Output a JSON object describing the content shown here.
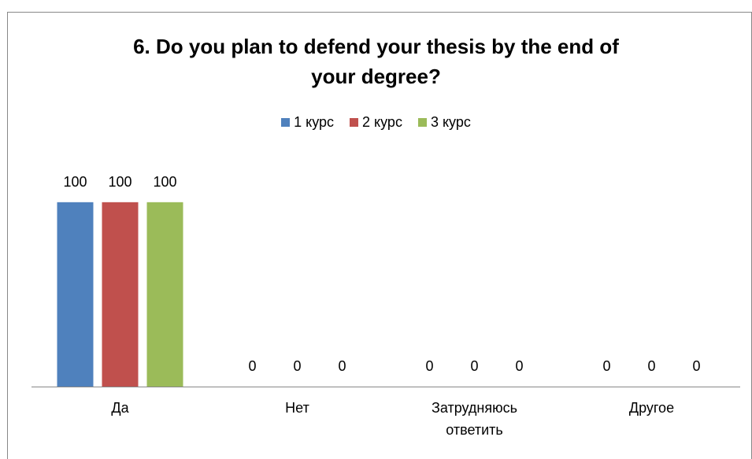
{
  "chart_data": {
    "type": "bar",
    "title": "6. Do you plan to defend your thesis by the end of your degree?",
    "categories": [
      "Да",
      "Нет",
      "Затрудняюсь ответить",
      "Другое"
    ],
    "series": [
      {
        "name": "1 курс",
        "color": "#4f81bd",
        "values": [
          100,
          0,
          0,
          0
        ]
      },
      {
        "name": "2 курс",
        "color": "#c0504d",
        "values": [
          100,
          0,
          0,
          0
        ]
      },
      {
        "name": "3 курс",
        "color": "#9bbb59",
        "values": [
          100,
          0,
          0,
          0
        ]
      }
    ],
    "ylim": [
      0,
      120
    ],
    "legend": "top"
  }
}
